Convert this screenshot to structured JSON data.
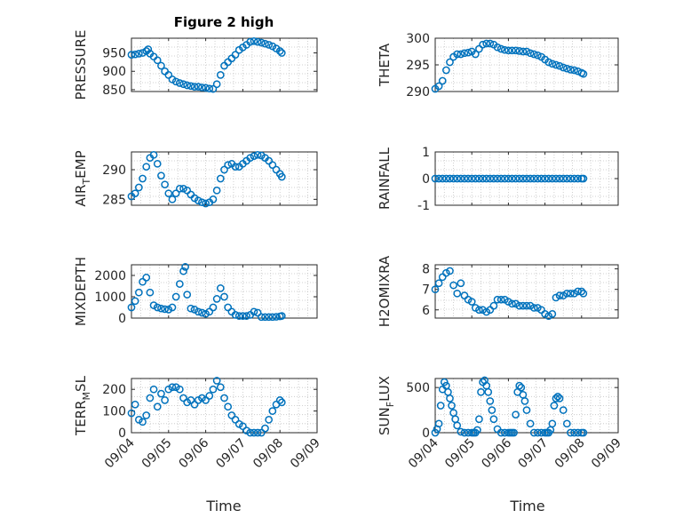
{
  "figure": {
    "title": "Figure 2 high",
    "xlabel": "Time",
    "x_ticks": [
      "09/04",
      "09/05",
      "09/06",
      "09/07",
      "09/08",
      "09/09"
    ],
    "x_range": [
      "2019-09-04",
      "2019-09-09"
    ],
    "grid": "minor dotted",
    "marker": "open circle",
    "marker_color": "#0072BD"
  },
  "chart_data": [
    {
      "type": "scatter",
      "id": "pressure",
      "ylabel": "PRESSURE",
      "ylim": [
        845,
        990
      ],
      "yticks": [
        850,
        900,
        950
      ],
      "x_days": [
        0,
        0.1,
        0.2,
        0.3,
        0.4,
        0.45,
        0.5,
        0.6,
        0.7,
        0.8,
        0.9,
        1.0,
        1.1,
        1.2,
        1.3,
        1.4,
        1.5,
        1.6,
        1.7,
        1.8,
        1.9,
        2.0,
        2.1,
        2.2,
        2.3,
        2.4,
        2.5,
        2.6,
        2.7,
        2.8,
        2.9,
        3.0,
        3.1,
        3.2,
        3.3,
        3.4,
        3.5,
        3.6,
        3.7,
        3.8,
        3.9,
        4.0,
        4.05
      ],
      "y": [
        945,
        946,
        948,
        950,
        955,
        960,
        948,
        940,
        930,
        915,
        900,
        890,
        878,
        872,
        868,
        865,
        862,
        860,
        858,
        858,
        856,
        855,
        853,
        852,
        865,
        890,
        915,
        925,
        935,
        945,
        958,
        965,
        972,
        980,
        982,
        980,
        978,
        975,
        972,
        968,
        962,
        955,
        950
      ]
    },
    {
      "type": "scatter",
      "id": "theta",
      "ylabel": "THETA",
      "ylim": [
        290,
        300
      ],
      "yticks": [
        290,
        295,
        300
      ],
      "x_days": [
        0,
        0.1,
        0.2,
        0.3,
        0.4,
        0.5,
        0.6,
        0.7,
        0.8,
        0.9,
        1.0,
        1.1,
        1.2,
        1.3,
        1.4,
        1.5,
        1.6,
        1.7,
        1.8,
        1.9,
        2.0,
        2.1,
        2.2,
        2.3,
        2.4,
        2.5,
        2.6,
        2.7,
        2.8,
        2.9,
        3.0,
        3.1,
        3.2,
        3.3,
        3.4,
        3.5,
        3.6,
        3.7,
        3.8,
        3.9,
        4.0,
        4.05
      ],
      "y": [
        290.5,
        291,
        292,
        294,
        295.5,
        296.5,
        297,
        297,
        297.2,
        297.3,
        297.5,
        297,
        298,
        298.8,
        299,
        299,
        298.8,
        298.3,
        298,
        297.8,
        297.7,
        297.7,
        297.7,
        297.6,
        297.5,
        297.5,
        297.2,
        297,
        296.8,
        296.5,
        296,
        295.5,
        295.2,
        295,
        294.8,
        294.5,
        294.3,
        294.1,
        294,
        293.8,
        293.5,
        293.3
      ]
    },
    {
      "type": "scatter",
      "id": "air_temp",
      "ylabel": "AIR",
      "ylabel_sub": "T",
      "ylabel_post": "EMP",
      "ylim": [
        284,
        293
      ],
      "yticks": [
        285,
        290
      ],
      "x_days": [
        0,
        0.1,
        0.2,
        0.3,
        0.4,
        0.5,
        0.6,
        0.7,
        0.8,
        0.9,
        1.0,
        1.1,
        1.2,
        1.3,
        1.4,
        1.5,
        1.6,
        1.7,
        1.8,
        1.9,
        2.0,
        2.1,
        2.2,
        2.3,
        2.4,
        2.5,
        2.6,
        2.7,
        2.8,
        2.9,
        3.0,
        3.1,
        3.2,
        3.3,
        3.4,
        3.5,
        3.6,
        3.7,
        3.8,
        3.9,
        4.0,
        4.05
      ],
      "y": [
        285.5,
        286,
        287,
        288.5,
        290.5,
        292,
        292.5,
        291,
        289,
        287.5,
        286,
        285,
        286,
        286.8,
        286.8,
        286.5,
        285.8,
        285.2,
        284.8,
        284.5,
        284.3,
        284.5,
        285,
        286.5,
        288.5,
        290,
        290.8,
        291,
        290.5,
        290.5,
        291,
        291.5,
        292,
        292.3,
        292.5,
        292.4,
        292,
        291.5,
        290.8,
        290,
        289.3,
        288.8
      ]
    },
    {
      "type": "scatter",
      "id": "rainfall",
      "ylabel": "RAINFALL",
      "ylim": [
        -1,
        1
      ],
      "yticks": [
        -1,
        0,
        1
      ],
      "x_days": [
        0,
        0.1,
        0.2,
        0.3,
        0.4,
        0.5,
        0.6,
        0.7,
        0.8,
        0.9,
        1.0,
        1.1,
        1.2,
        1.3,
        1.4,
        1.5,
        1.6,
        1.7,
        1.8,
        1.9,
        2.0,
        2.1,
        2.2,
        2.3,
        2.4,
        2.5,
        2.6,
        2.7,
        2.8,
        2.9,
        3.0,
        3.1,
        3.2,
        3.3,
        3.4,
        3.5,
        3.6,
        3.7,
        3.8,
        3.9,
        4.0,
        4.05
      ],
      "y": [
        0,
        0,
        0,
        0,
        0,
        0,
        0,
        0,
        0,
        0,
        0,
        0,
        0,
        0,
        0,
        0,
        0,
        0,
        0,
        0,
        0,
        0,
        0,
        0,
        0,
        0,
        0,
        0,
        0,
        0,
        0,
        0,
        0,
        0,
        0,
        0,
        0,
        0,
        0,
        0,
        0,
        0
      ]
    },
    {
      "type": "scatter",
      "id": "mixdepth",
      "ylabel": "MIXDEPTH",
      "ylim": [
        0,
        2500
      ],
      "yticks": [
        0,
        1000,
        2000
      ],
      "x_days": [
        0,
        0.1,
        0.2,
        0.3,
        0.4,
        0.5,
        0.6,
        0.7,
        0.8,
        0.9,
        1.0,
        1.1,
        1.2,
        1.3,
        1.4,
        1.45,
        1.5,
        1.6,
        1.7,
        1.8,
        1.9,
        2.0,
        2.1,
        2.2,
        2.3,
        2.4,
        2.5,
        2.6,
        2.7,
        2.8,
        2.9,
        3.0,
        3.1,
        3.2,
        3.3,
        3.4,
        3.5,
        3.6,
        3.7,
        3.8,
        3.9,
        4.0,
        4.05
      ],
      "y": [
        500,
        800,
        1200,
        1700,
        1900,
        1200,
        600,
        500,
        450,
        420,
        400,
        500,
        1000,
        1600,
        2200,
        2400,
        1100,
        450,
        400,
        300,
        250,
        200,
        300,
        500,
        900,
        1400,
        1000,
        500,
        300,
        150,
        100,
        100,
        100,
        150,
        300,
        250,
        50,
        50,
        50,
        50,
        60,
        80,
        100
      ]
    },
    {
      "type": "scatter",
      "id": "h2omixra",
      "ylabel": "H2OMIXRA",
      "ylim": [
        5.6,
        8.2
      ],
      "yticks": [
        6,
        7,
        8
      ],
      "x_days": [
        0,
        0.1,
        0.2,
        0.3,
        0.4,
        0.5,
        0.6,
        0.7,
        0.8,
        0.9,
        1.0,
        1.1,
        1.2,
        1.3,
        1.4,
        1.5,
        1.6,
        1.7,
        1.8,
        1.9,
        2.0,
        2.1,
        2.2,
        2.3,
        2.4,
        2.5,
        2.6,
        2.7,
        2.8,
        2.9,
        3.0,
        3.1,
        3.2,
        3.3,
        3.4,
        3.5,
        3.6,
        3.7,
        3.8,
        3.9,
        4.0,
        4.05
      ],
      "y": [
        7.0,
        7.3,
        7.6,
        7.8,
        7.9,
        7.2,
        6.8,
        7.3,
        6.7,
        6.5,
        6.4,
        6.1,
        6.0,
        6.0,
        5.9,
        6.0,
        6.2,
        6.5,
        6.5,
        6.5,
        6.4,
        6.3,
        6.3,
        6.2,
        6.2,
        6.2,
        6.2,
        6.1,
        6.1,
        6.0,
        5.8,
        5.7,
        5.8,
        6.6,
        6.7,
        6.7,
        6.8,
        6.8,
        6.8,
        6.9,
        6.9,
        6.8
      ]
    },
    {
      "type": "scatter",
      "id": "terr_msl",
      "ylabel": "TERR",
      "ylabel_sub": "M",
      "ylabel_post": "SL",
      "ylim": [
        0,
        250
      ],
      "yticks": [
        0,
        100,
        200
      ],
      "x_days": [
        0,
        0.1,
        0.2,
        0.3,
        0.4,
        0.5,
        0.6,
        0.7,
        0.8,
        0.9,
        1.0,
        1.1,
        1.2,
        1.3,
        1.4,
        1.5,
        1.6,
        1.7,
        1.8,
        1.9,
        2.0,
        2.1,
        2.2,
        2.3,
        2.4,
        2.5,
        2.6,
        2.7,
        2.8,
        2.9,
        3.0,
        3.1,
        3.2,
        3.3,
        3.4,
        3.5,
        3.6,
        3.7,
        3.8,
        3.9,
        4.0,
        4.05
      ],
      "y": [
        90,
        130,
        60,
        50,
        80,
        160,
        200,
        120,
        180,
        150,
        200,
        210,
        210,
        200,
        160,
        140,
        150,
        130,
        150,
        160,
        150,
        170,
        200,
        240,
        210,
        160,
        120,
        80,
        60,
        40,
        30,
        10,
        0,
        0,
        0,
        0,
        20,
        60,
        100,
        130,
        150,
        140
      ]
    },
    {
      "type": "scatter",
      "id": "sun_flux",
      "ylabel": "SUN",
      "ylabel_sub": "F",
      "ylabel_post": "LUX",
      "ylim": [
        0,
        600
      ],
      "yticks": [
        0,
        500
      ],
      "x_days": [
        0,
        0.05,
        0.1,
        0.15,
        0.2,
        0.25,
        0.3,
        0.35,
        0.4,
        0.45,
        0.5,
        0.55,
        0.6,
        0.7,
        0.8,
        0.9,
        1.0,
        1.05,
        1.1,
        1.15,
        1.2,
        1.25,
        1.3,
        1.35,
        1.4,
        1.45,
        1.5,
        1.55,
        1.6,
        1.7,
        1.8,
        1.9,
        2.0,
        2.05,
        2.1,
        2.15,
        2.2,
        2.25,
        2.3,
        2.35,
        2.4,
        2.45,
        2.5,
        2.6,
        2.7,
        2.8,
        2.9,
        3.0,
        3.05,
        3.1,
        3.15,
        3.2,
        3.25,
        3.3,
        3.35,
        3.4,
        3.5,
        3.6,
        3.7,
        3.8,
        3.9,
        4.0,
        4.05
      ],
      "y": [
        0,
        40,
        100,
        300,
        480,
        560,
        520,
        450,
        380,
        300,
        220,
        150,
        80,
        10,
        0,
        0,
        0,
        0,
        0,
        30,
        150,
        450,
        560,
        580,
        520,
        450,
        350,
        250,
        150,
        40,
        0,
        0,
        0,
        0,
        0,
        0,
        200,
        450,
        520,
        500,
        420,
        350,
        250,
        100,
        0,
        0,
        0,
        0,
        0,
        0,
        30,
        100,
        300,
        380,
        400,
        380,
        250,
        100,
        0,
        0,
        0,
        0,
        0
      ]
    }
  ]
}
